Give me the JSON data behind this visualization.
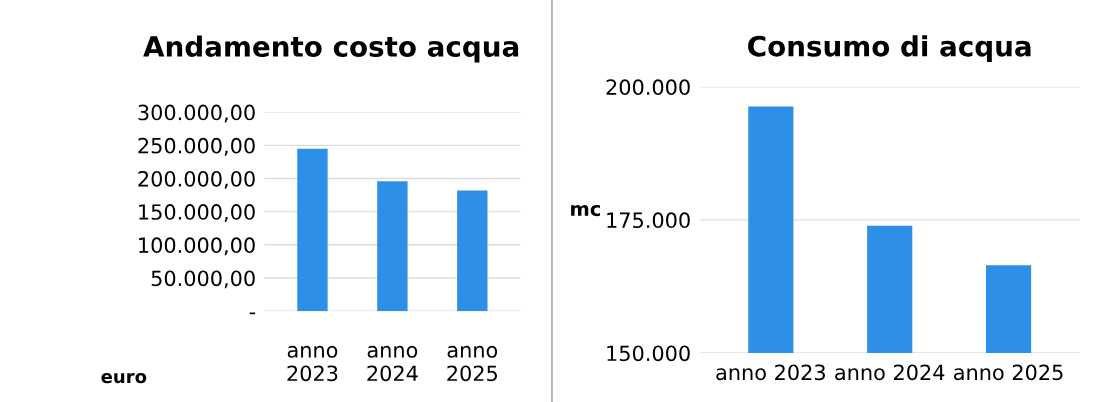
{
  "chart_data": [
    {
      "type": "bar",
      "title": "Andamento costo acqua",
      "ylabel": "euro",
      "categories": [
        "anno 2023",
        "anno 2024",
        "anno 2025"
      ],
      "values": [
        245000,
        196000,
        182000
      ],
      "color": "#2e8fe6",
      "ylim": [
        0,
        300000
      ],
      "yticks": [
        {
          "value": 0,
          "label": "-"
        },
        {
          "value": 50000,
          "label": "50.000,00"
        },
        {
          "value": 100000,
          "label": "100.000,00"
        },
        {
          "value": 150000,
          "label": "150.000,00"
        },
        {
          "value": 200000,
          "label": "200.000,00"
        },
        {
          "value": 250000,
          "label": "250.000,00"
        },
        {
          "value": 300000,
          "label": "300.000,00"
        }
      ],
      "grid": "y"
    },
    {
      "type": "bar",
      "title": "Consumo di acqua",
      "ylabel": "mc",
      "categories": [
        "anno 2023",
        "anno 2024",
        "anno 2025"
      ],
      "values": [
        196300,
        173900,
        166500
      ],
      "color": "#2e8fe6",
      "ylim": [
        150000,
        200000
      ],
      "yticks": [
        {
          "value": 150000,
          "label": "150.000"
        },
        {
          "value": 175000,
          "label": "175.000"
        },
        {
          "value": 200000,
          "label": "200.000"
        }
      ],
      "grid": "y"
    }
  ]
}
